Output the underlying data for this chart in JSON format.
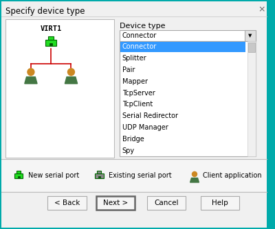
{
  "title": "Specify device type",
  "outer_border_color": "#00aaaa",
  "bg_color": "#e8e8e8",
  "dialog_bg": "#f0f0f0",
  "panel_bg": "#ffffff",
  "dropdown_text": "Connector",
  "device_type_label": "Device type",
  "list_items": [
    "Connector",
    "Splitter",
    "Pair",
    "Mapper",
    "TcpServer",
    "TcpClient",
    "Serial Redirector",
    "UDP Manager",
    "Bridge",
    "Spy"
  ],
  "selected_item": "Connector",
  "selected_color": "#3399ff",
  "virt_label": "VIRT1",
  "legend_items": [
    "New serial port",
    "Existing serial port",
    "Client application"
  ],
  "buttons": [
    "< Back",
    "Next >",
    "Cancel",
    "Help"
  ],
  "tree_line_color": "#cc0000",
  "green_color": "#22dd22",
  "person_head_color": "#cc8822",
  "person_body_color": "#447744",
  "gray_icon_color": "#888888"
}
